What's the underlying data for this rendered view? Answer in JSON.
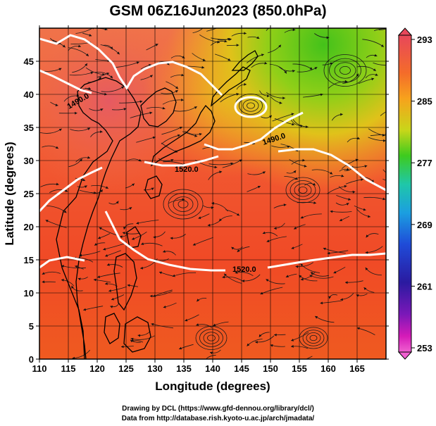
{
  "title": "GSM 06Z16Jun2023 (850.0hPa)",
  "x_axis": {
    "label": "Longitude (degrees)",
    "ticks": [
      "110",
      "115",
      "120",
      "125",
      "130",
      "135",
      "140",
      "145",
      "150",
      "155",
      "160",
      "165"
    ]
  },
  "y_axis": {
    "label": "Latitude  (degrees)",
    "ticks": [
      "0",
      "5",
      "10",
      "15",
      "20",
      "25",
      "30",
      "35",
      "40",
      "45"
    ]
  },
  "colorbar": {
    "ticks": [
      "293",
      "285",
      "277",
      "269",
      "261",
      "253"
    ],
    "colors": [
      "#e8475a",
      "#f46c2a",
      "#f7a21c",
      "#c8d61a",
      "#3ecb1e",
      "#1fc7a8",
      "#1b9fe0",
      "#1f4bd8",
      "#2a1aa0",
      "#7a18b8",
      "#d51bb8",
      "#f060d0"
    ]
  },
  "contour_labels": [
    "1490.0",
    "1490.0",
    "1520.0",
    "1520.0"
  ],
  "credits": {
    "line1": "Drawing by DCL (https://www.gfd-dennou.org/library/dcl/)",
    "line2": "Data from http://database.rish.kyoto-u.ac.jp/arch/jmadata/"
  }
}
